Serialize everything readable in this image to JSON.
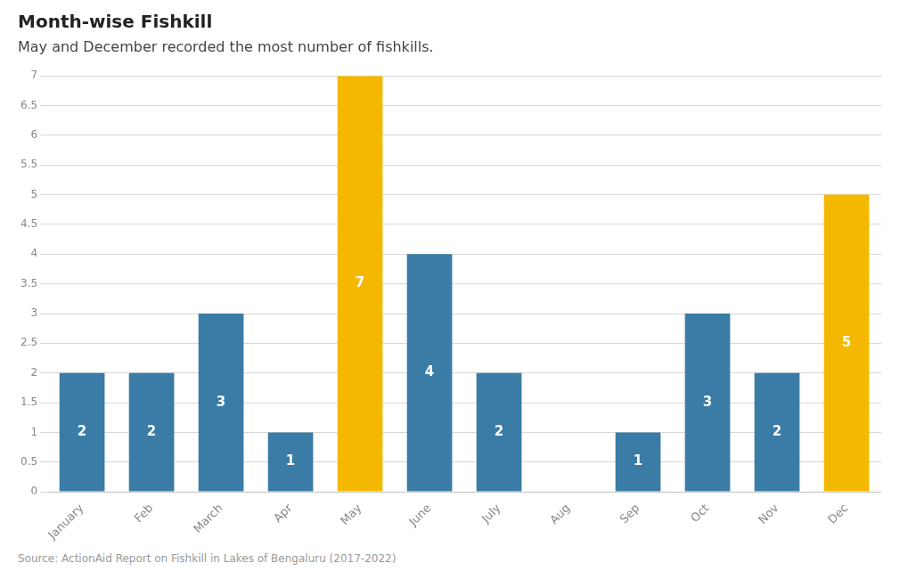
{
  "chart_data": {
    "type": "bar",
    "title": "Month-wise Fishkill",
    "subtitle": "May and December recorded the most number of fishkills.",
    "source": "Source: ActionAid Report on Fishkill in Lakes of Bengaluru (2017-2022)",
    "categories": [
      "January",
      "Feb",
      "March",
      "Apr",
      "May",
      "June",
      "July",
      "Aug",
      "Sep",
      "Oct",
      "Nov",
      "Dec"
    ],
    "values": [
      2,
      2,
      3,
      1,
      7,
      4,
      2,
      0,
      1,
      3,
      2,
      5
    ],
    "value_labels": [
      "2",
      "2",
      "3",
      "1",
      "7",
      "4",
      "2",
      null,
      "1",
      "3",
      "2",
      "5"
    ],
    "colors": [
      "#3a7ca5",
      "#3a7ca5",
      "#3a7ca5",
      "#3a7ca5",
      "#f5b800",
      "#3a7ca5",
      "#3a7ca5",
      "#3a7ca5",
      "#3a7ca5",
      "#3a7ca5",
      "#3a7ca5",
      "#f5b800"
    ],
    "ylim": [
      0,
      7
    ],
    "yticks": [
      0,
      0.5,
      1,
      1.5,
      2,
      2.5,
      3,
      3.5,
      4,
      4.5,
      5,
      5.5,
      6,
      6.5,
      7
    ],
    "grid": true,
    "data_labels": true
  }
}
